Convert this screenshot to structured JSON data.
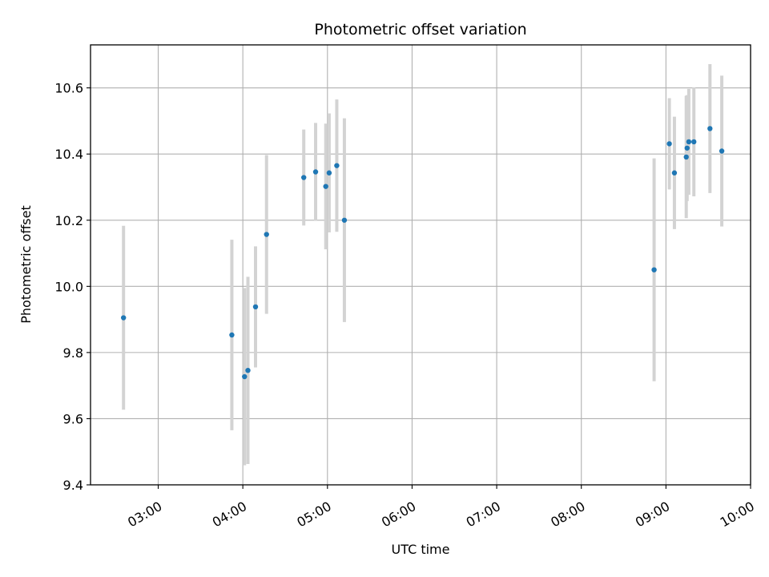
{
  "chart_data": {
    "type": "scatter",
    "title": "Photometric offset variation",
    "xlabel": "UTC time",
    "ylabel": "Photometric offset",
    "x_unit": "hours UTC",
    "xlim": [
      2.2,
      10.0
    ],
    "ylim": [
      9.4,
      10.73
    ],
    "x_ticks": [
      3,
      4,
      5,
      6,
      7,
      8,
      9,
      10
    ],
    "x_tick_labels": [
      "03:00",
      "04:00",
      "05:00",
      "06:00",
      "07:00",
      "08:00",
      "09:00",
      "10:00"
    ],
    "y_ticks": [
      9.4,
      9.6,
      9.8,
      10.0,
      10.2,
      10.4,
      10.6
    ],
    "y_tick_labels": [
      "9.4",
      "9.6",
      "9.8",
      "10.0",
      "10.2",
      "10.4",
      "10.6"
    ],
    "grid": true,
    "point_color": "#1f77b4",
    "errorbar_color": "#d3d3d3",
    "points": [
      {
        "x": 2.59,
        "y": 9.905,
        "err": 0.278
      },
      {
        "x": 3.87,
        "y": 9.853,
        "err": 0.288
      },
      {
        "x": 4.02,
        "y": 9.727,
        "err": 0.268
      },
      {
        "x": 4.06,
        "y": 9.746,
        "err": 0.283
      },
      {
        "x": 4.15,
        "y": 9.938,
        "err": 0.183
      },
      {
        "x": 4.28,
        "y": 10.157,
        "err": 0.24
      },
      {
        "x": 4.72,
        "y": 10.329,
        "err": 0.145
      },
      {
        "x": 4.86,
        "y": 10.346,
        "err": 0.148
      },
      {
        "x": 4.98,
        "y": 10.302,
        "err": 0.19
      },
      {
        "x": 5.02,
        "y": 10.343,
        "err": 0.18
      },
      {
        "x": 5.11,
        "y": 10.365,
        "err": 0.2
      },
      {
        "x": 5.2,
        "y": 10.2,
        "err": 0.308
      },
      {
        "x": 8.86,
        "y": 10.05,
        "err": 0.337
      },
      {
        "x": 9.04,
        "y": 10.431,
        "err": 0.138
      },
      {
        "x": 9.1,
        "y": 10.343,
        "err": 0.17
      },
      {
        "x": 9.24,
        "y": 10.391,
        "err": 0.185
      },
      {
        "x": 9.25,
        "y": 10.418,
        "err": 0.16
      },
      {
        "x": 9.27,
        "y": 10.437,
        "err": 0.16
      },
      {
        "x": 9.33,
        "y": 10.437,
        "err": 0.165
      },
      {
        "x": 9.52,
        "y": 10.477,
        "err": 0.195
      },
      {
        "x": 9.66,
        "y": 10.409,
        "err": 0.228
      }
    ]
  }
}
